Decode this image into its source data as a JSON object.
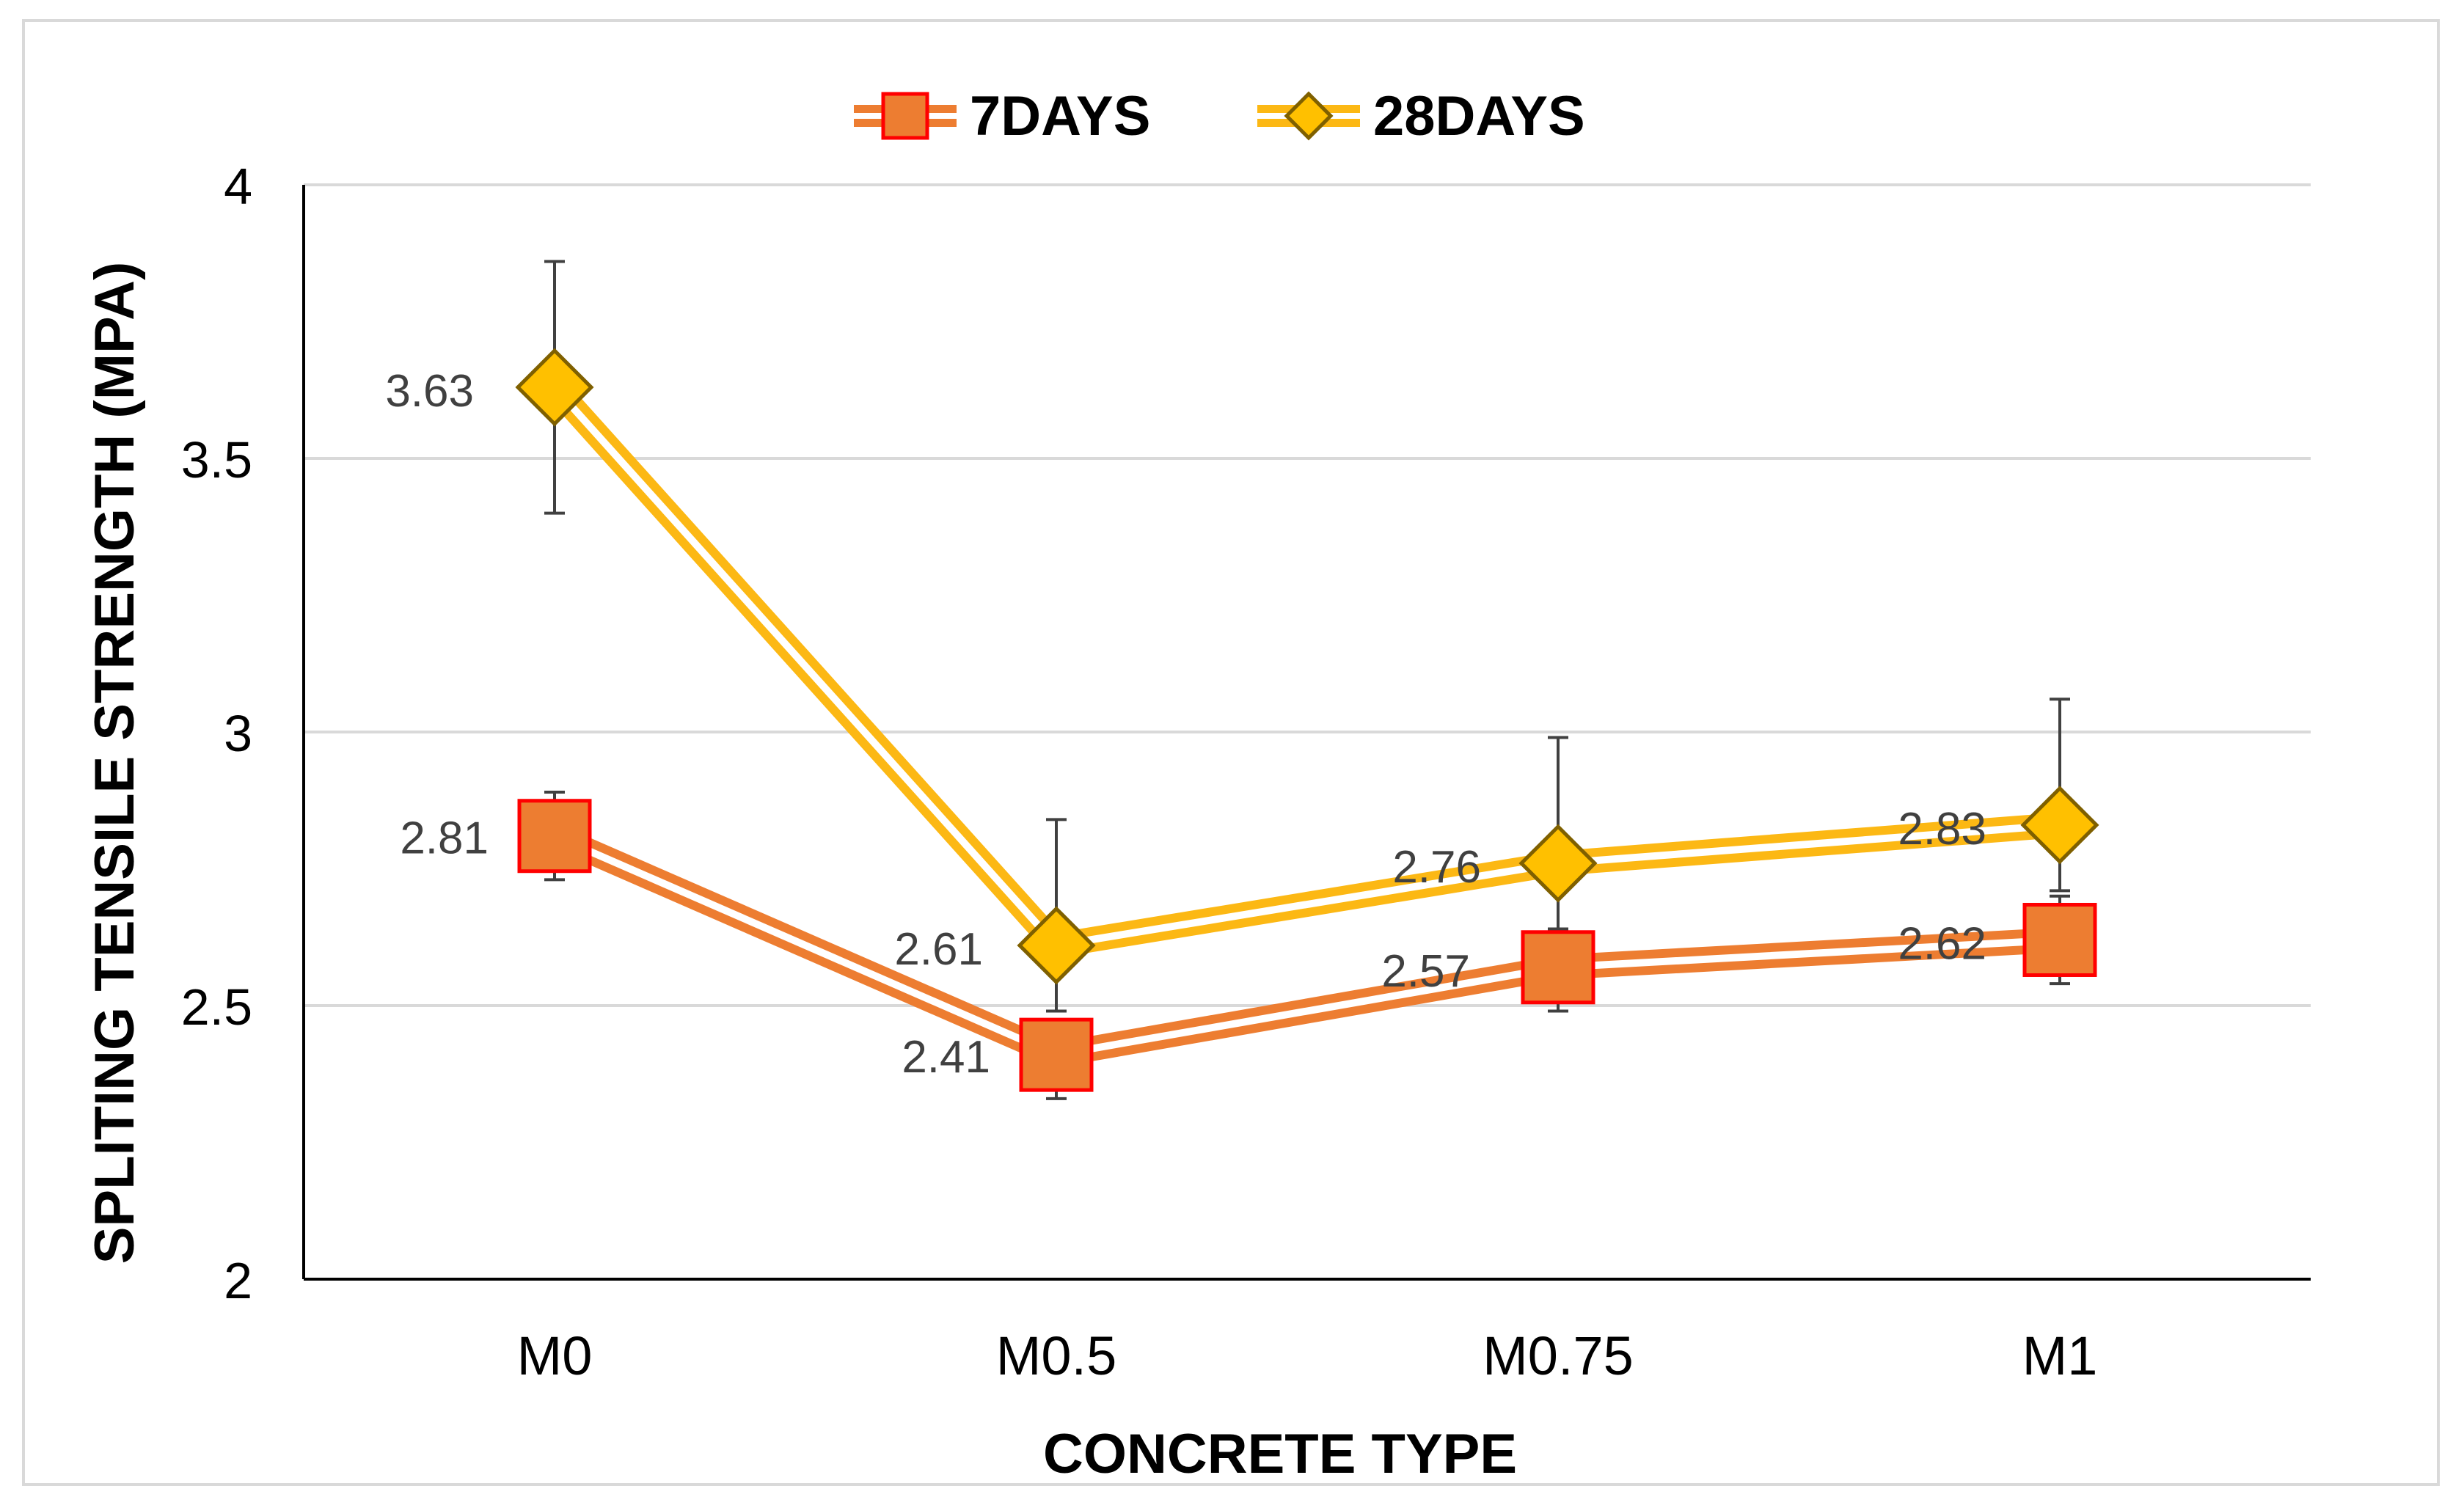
{
  "chart_data": {
    "type": "line",
    "title": "",
    "xlabel": "CONCRETE TYPE",
    "ylabel": "SPLITING TENSILE  STRENGTH (MPA)",
    "categories": [
      "M0",
      "M0.5",
      "M0.75",
      "M1"
    ],
    "ylim": [
      2,
      4
    ],
    "yticks": [
      2,
      2.5,
      3,
      3.5,
      4
    ],
    "ytick_labels": [
      "2",
      "2.5",
      "3",
      "3.5",
      "4"
    ],
    "grid": true,
    "legend_position": "top-center",
    "series": [
      {
        "name": "7DAYS",
        "marker": "square",
        "color": "#ed7d31",
        "marker_border": "#ff0000",
        "values": [
          2.81,
          2.41,
          2.57,
          2.62
        ],
        "value_labels": [
          "2.81",
          "2.41",
          "2.57",
          "2.62"
        ],
        "error_plus": [
          0.08,
          0.0,
          0.0,
          0.08
        ],
        "error_minus": [
          0.08,
          0.08,
          0.08,
          0.08
        ]
      },
      {
        "name": "28DAYS",
        "marker": "diamond",
        "color": "#ffc000",
        "line_color": "#fcb814",
        "marker_border": "#7f6000",
        "values": [
          3.63,
          2.61,
          2.76,
          2.83
        ],
        "value_labels": [
          "3.63",
          "2.61",
          "2.76",
          "2.83"
        ],
        "error_plus": [
          0.23,
          0.23,
          0.23,
          0.23
        ],
        "error_minus": [
          0.23,
          0.12,
          0.12,
          0.12
        ]
      }
    ]
  }
}
